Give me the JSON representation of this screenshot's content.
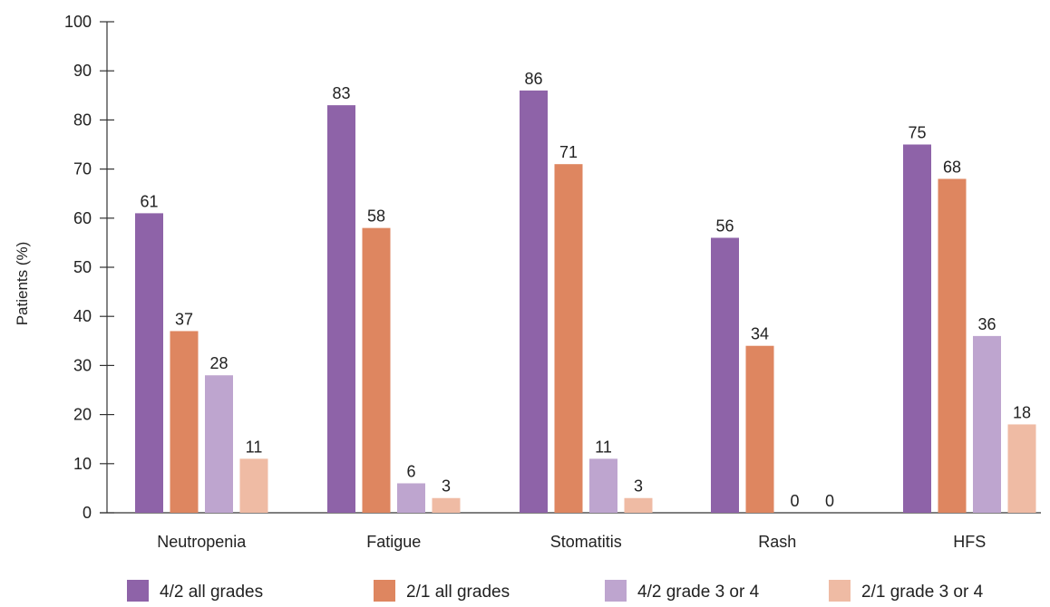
{
  "chart_data": {
    "type": "bar",
    "ylabel": "Patients (%)",
    "xlabel": "",
    "ylim": [
      0,
      100
    ],
    "yticks": [
      "0",
      "10",
      "20",
      "30",
      "40",
      "50",
      "60",
      "70",
      "80",
      "90",
      "100"
    ],
    "categories": [
      "Neutropenia",
      "Fatigue",
      "Stomatitis",
      "Rash",
      "HFS"
    ],
    "series": [
      {
        "name": "4/2 all grades",
        "color": "#8e63a8",
        "values": [
          61,
          83,
          86,
          56,
          75
        ],
        "labels": [
          "61",
          "83",
          "86",
          "56",
          "75"
        ]
      },
      {
        "name": "2/1 all grades",
        "color": "#de8660",
        "values": [
          37,
          58,
          71,
          34,
          68
        ],
        "labels": [
          "37",
          "58",
          "71",
          "34",
          "68"
        ]
      },
      {
        "name": "4/2 grade 3 or 4",
        "color": "#bea5cf",
        "values": [
          28,
          6,
          11,
          0,
          36
        ],
        "labels": [
          "28",
          "6",
          "11",
          "0",
          "36"
        ]
      },
      {
        "name": "2/1 grade 3 or 4",
        "color": "#efbba4",
        "values": [
          11,
          3,
          3,
          0,
          18
        ],
        "labels": [
          "11",
          "3",
          "3",
          "0",
          "18"
        ]
      }
    ],
    "grid": false,
    "legend_position": "bottom"
  }
}
